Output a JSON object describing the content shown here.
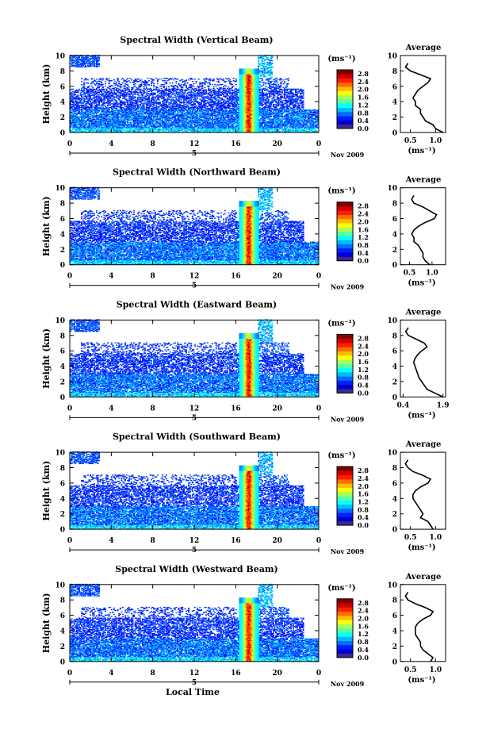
{
  "figure": {
    "colorbar_unit": "(ms⁻¹)",
    "colorbar_ticks": [
      "0.0",
      "0.4",
      "0.8",
      "1.2",
      "1.6",
      "2.0",
      "2.4",
      "2.8"
    ],
    "x_ticks": [
      "0",
      "4",
      "8",
      "12",
      "16",
      "20",
      "0"
    ],
    "date_day": "5",
    "date_label": "Nov 2009",
    "x_axis_title": "Local Time",
    "y_axis_title": "Height (km)",
    "y_ticks": [
      "0",
      "2",
      "4",
      "6",
      "8",
      "10"
    ],
    "avg_title": "Average",
    "avg_xunit": "(ms⁻¹)"
  },
  "chart_data": [
    {
      "type": "heatmap",
      "title": "Spectral Width (Vertical Beam)",
      "xlabel": "",
      "ylabel": "Height (km)",
      "xlim": [
        0,
        24
      ],
      "ylim": [
        0,
        10
      ],
      "colorbar": {
        "range": [
          0.0,
          2.8
        ],
        "unit": "ms-1"
      },
      "average": {
        "title": "Average",
        "xlim": [
          0.3,
          1.2
        ],
        "xticks": [
          "0.5",
          "1.0"
        ],
        "height_km": [
          0.0,
          0.5,
          1.0,
          1.5,
          2.0,
          2.5,
          3.0,
          3.5,
          4.0,
          4.5,
          5.0,
          5.5,
          6.0,
          6.5,
          7.0,
          7.5,
          8.0,
          8.5,
          9.0
        ],
        "value": [
          1.15,
          1.0,
          0.95,
          0.8,
          0.75,
          0.7,
          0.7,
          0.6,
          0.6,
          0.55,
          0.6,
          0.65,
          0.75,
          0.85,
          0.9,
          0.7,
          0.5,
          0.4,
          0.45
        ]
      }
    },
    {
      "type": "heatmap",
      "title": "Spectral Width (Northward Beam)",
      "xlabel": "",
      "ylabel": "Height (km)",
      "xlim": [
        0,
        24
      ],
      "ylim": [
        0,
        10
      ],
      "colorbar": {
        "range": [
          0.0,
          2.8
        ],
        "unit": "ms-1"
      },
      "average": {
        "title": "Average",
        "xlim": [
          0.3,
          1.3
        ],
        "xticks": [
          "0.5",
          "1.0"
        ],
        "height_km": [
          0.0,
          0.5,
          1.0,
          1.5,
          2.0,
          2.5,
          3.0,
          3.5,
          4.0,
          4.5,
          5.0,
          5.5,
          6.0,
          6.5,
          7.0,
          7.5,
          8.0,
          8.5,
          9.0
        ],
        "value": [
          0.95,
          0.85,
          0.8,
          0.8,
          0.75,
          0.7,
          0.6,
          0.6,
          0.55,
          0.6,
          0.7,
          0.85,
          1.05,
          1.1,
          0.95,
          0.8,
          0.6,
          0.55,
          0.6
        ]
      }
    },
    {
      "type": "heatmap",
      "title": "Spectral Width (Eastward Beam)",
      "xlabel": "",
      "ylabel": "Height (km)",
      "xlim": [
        0,
        24
      ],
      "ylim": [
        0,
        10
      ],
      "colorbar": {
        "range": [
          0.0,
          2.8
        ],
        "unit": "ms-1"
      },
      "average": {
        "title": "Average",
        "xlim": [
          0.3,
          2.0
        ],
        "xticks": [
          "0.4",
          "1.9"
        ],
        "height_km": [
          0.0,
          0.5,
          1.0,
          1.5,
          2.0,
          2.5,
          3.0,
          3.5,
          4.0,
          4.5,
          5.0,
          5.5,
          6.0,
          6.5,
          7.0,
          7.5,
          8.0,
          8.5,
          9.0
        ],
        "value": [
          1.9,
          1.6,
          1.3,
          1.2,
          1.1,
          1.0,
          0.95,
          0.9,
          0.85,
          0.8,
          0.85,
          0.95,
          1.1,
          1.3,
          1.2,
          0.9,
          0.6,
          0.5,
          0.6
        ]
      }
    },
    {
      "type": "heatmap",
      "title": "Spectral Width (Southward Beam)",
      "xlabel": "",
      "ylabel": "Height (km)",
      "xlim": [
        0,
        24
      ],
      "ylim": [
        0,
        10
      ],
      "colorbar": {
        "range": [
          0.0,
          2.8
        ],
        "unit": "ms-1"
      },
      "average": {
        "title": "Average",
        "xlim": [
          0.3,
          1.2
        ],
        "xticks": [
          "0.5",
          "1.0"
        ],
        "height_km": [
          0.0,
          0.5,
          1.0,
          1.5,
          2.0,
          2.5,
          3.0,
          3.5,
          4.0,
          4.5,
          5.0,
          5.5,
          6.0,
          6.5,
          7.0,
          7.5,
          8.0,
          8.5,
          9.0
        ],
        "value": [
          0.95,
          0.9,
          0.85,
          0.7,
          0.75,
          0.7,
          0.65,
          0.6,
          0.55,
          0.55,
          0.6,
          0.7,
          0.85,
          0.9,
          0.75,
          0.55,
          0.45,
          0.4,
          0.45
        ]
      }
    },
    {
      "type": "heatmap",
      "title": "Spectral Width (Westward Beam)",
      "xlabel": "Local Time",
      "ylabel": "Height (km)",
      "xlim": [
        0,
        24
      ],
      "ylim": [
        0,
        10
      ],
      "colorbar": {
        "range": [
          0.0,
          2.8
        ],
        "unit": "ms-1"
      },
      "average": {
        "title": "Average",
        "xlim": [
          0.3,
          1.2
        ],
        "xticks": [
          "0.5",
          "1.0"
        ],
        "height_km": [
          0.0,
          0.5,
          1.0,
          1.5,
          2.0,
          2.5,
          3.0,
          3.5,
          4.0,
          4.5,
          5.0,
          5.5,
          6.0,
          6.5,
          7.0,
          7.5,
          8.0,
          8.5,
          9.0
        ],
        "value": [
          0.9,
          0.95,
          0.85,
          0.75,
          0.7,
          0.7,
          0.65,
          0.6,
          0.6,
          0.6,
          0.65,
          0.75,
          0.9,
          0.95,
          0.8,
          0.6,
          0.45,
          0.4,
          0.45
        ]
      }
    }
  ]
}
